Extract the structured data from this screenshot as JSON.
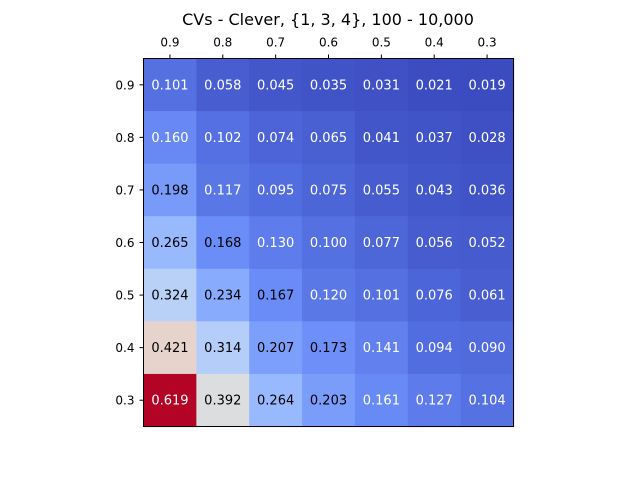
{
  "chart_data": {
    "type": "heatmap",
    "title": "CVs - Clever, {1, 3, 4}, 100 - 10,000",
    "x_labels": [
      "0.9",
      "0.8",
      "0.7",
      "0.6",
      "0.5",
      "0.4",
      "0.3"
    ],
    "y_labels": [
      "0.9",
      "0.8",
      "0.7",
      "0.6",
      "0.5",
      "0.4",
      "0.3"
    ],
    "x_axis_position": "top",
    "colormap": "coolwarm",
    "grid": false,
    "legend": "none",
    "values": [
      [
        0.101,
        0.058,
        0.045,
        0.035,
        0.031,
        0.021,
        0.019
      ],
      [
        0.16,
        0.102,
        0.074,
        0.065,
        0.041,
        0.037,
        0.028
      ],
      [
        0.198,
        0.117,
        0.095,
        0.075,
        0.055,
        0.043,
        0.036
      ],
      [
        0.265,
        0.168,
        0.13,
        0.1,
        0.077,
        0.056,
        0.052
      ],
      [
        0.324,
        0.234,
        0.167,
        0.12,
        0.101,
        0.076,
        0.061
      ],
      [
        0.421,
        0.314,
        0.207,
        0.173,
        0.141,
        0.094,
        0.09
      ],
      [
        0.619,
        0.392,
        0.264,
        0.203,
        0.161,
        0.127,
        0.104
      ]
    ],
    "value_labels": [
      [
        "0.101",
        "0.058",
        "0.045",
        "0.035",
        "0.031",
        "0.021",
        "0.019"
      ],
      [
        "0.160",
        "0.102",
        "0.074",
        "0.065",
        "0.041",
        "0.037",
        "0.028"
      ],
      [
        "0.198",
        "0.117",
        "0.095",
        "0.075",
        "0.055",
        "0.043",
        "0.036"
      ],
      [
        "0.265",
        "0.168",
        "0.130",
        "0.100",
        "0.077",
        "0.056",
        "0.052"
      ],
      [
        "0.324",
        "0.234",
        "0.167",
        "0.120",
        "0.101",
        "0.076",
        "0.061"
      ],
      [
        "0.421",
        "0.314",
        "0.207",
        "0.173",
        "0.141",
        "0.094",
        "0.090"
      ],
      [
        "0.619",
        "0.392",
        "0.264",
        "0.203",
        "0.161",
        "0.127",
        "0.104"
      ]
    ]
  }
}
